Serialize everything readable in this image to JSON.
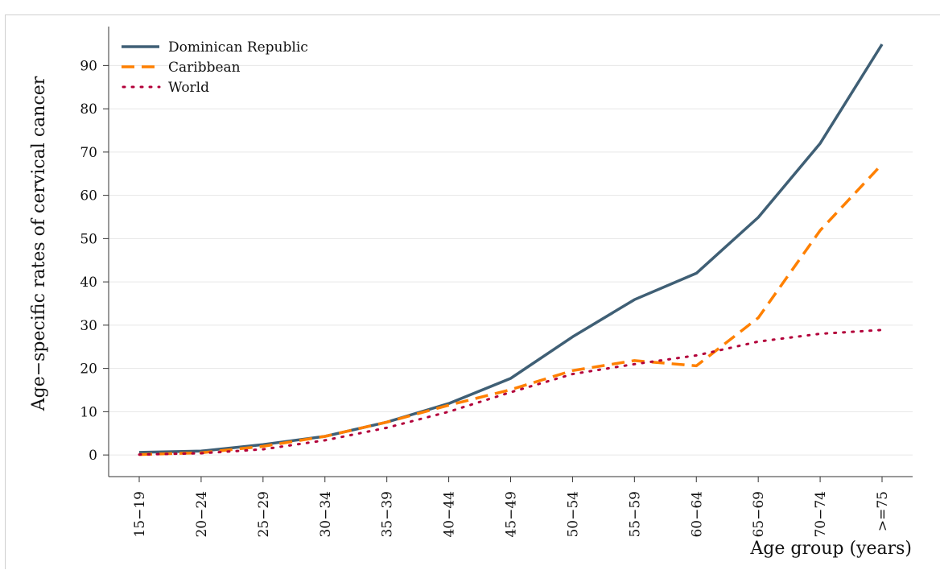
{
  "chart_data": {
    "type": "line",
    "title": "",
    "xlabel": "Age group (years)",
    "ylabel": "Age−specific rates of cervical cancer",
    "categories": [
      "15−19",
      "20−24",
      "25−29",
      "30−34",
      "35−39",
      "40−44",
      "45−49",
      "50−54",
      "55−59",
      "60−64",
      "65−69",
      "70−74",
      ">=75"
    ],
    "yticks": [
      "0",
      "10",
      "20",
      "30",
      "40",
      "50",
      "60",
      "70",
      "80",
      "90"
    ],
    "ylim": [
      -5,
      99
    ],
    "grid": true,
    "legend_position": "top-left",
    "series": [
      {
        "name": "Dominican Republic",
        "style": "solid",
        "color": "#3f5f75",
        "values": [
          0.6,
          0.9,
          2.4,
          4.3,
          7.6,
          11.9,
          17.7,
          27.3,
          35.9,
          42.0,
          54.9,
          72.0,
          94.9
        ]
      },
      {
        "name": "Caribbean",
        "style": "dashed",
        "color": "#ff8000",
        "values": [
          0.1,
          0.5,
          2.0,
          4.3,
          7.6,
          11.5,
          15.1,
          19.5,
          21.8,
          20.6,
          31.7,
          51.9,
          67.2
        ]
      },
      {
        "name": "World",
        "style": "dotted",
        "color": "#b3003a",
        "values": [
          0.1,
          0.4,
          1.3,
          3.4,
          6.3,
          10.0,
          14.5,
          18.7,
          21.0,
          23.0,
          26.2,
          28.0,
          28.9
        ]
      }
    ]
  }
}
